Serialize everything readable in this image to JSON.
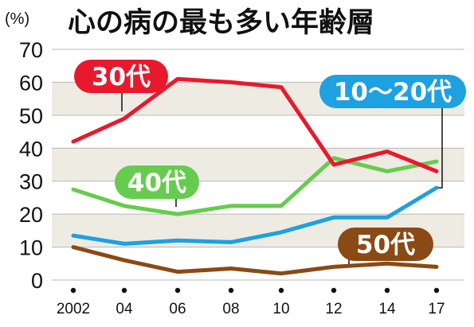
{
  "chart_data": {
    "type": "line",
    "title": "心の病の最も多い年齢層",
    "ylabel": "(%)",
    "xlabel": "",
    "categories": [
      "2002",
      "04",
      "06",
      "08",
      "10",
      "12",
      "14",
      "17"
    ],
    "ylim": [
      0,
      70
    ],
    "yticks": [
      "0",
      "10",
      "20",
      "30",
      "40",
      "50",
      "60",
      "70"
    ],
    "grid": "horizontal bands",
    "series": [
      {
        "name": "30代",
        "color": "#e8192c",
        "values": [
          42,
          49,
          61,
          60,
          58.5,
          35,
          39,
          33
        ]
      },
      {
        "name": "10〜20代",
        "color": "#1fa0e0",
        "values": [
          13.5,
          11,
          12,
          11.5,
          14.5,
          19,
          19,
          28
        ]
      },
      {
        "name": "40代",
        "color": "#66cc4d",
        "values": [
          27.5,
          22.5,
          20,
          22.5,
          22.5,
          37,
          33,
          36
        ]
      },
      {
        "name": "50代",
        "color": "#8a4a15",
        "values": [
          10,
          6,
          2.5,
          3.5,
          2,
          4,
          5,
          4
        ]
      }
    ]
  }
}
